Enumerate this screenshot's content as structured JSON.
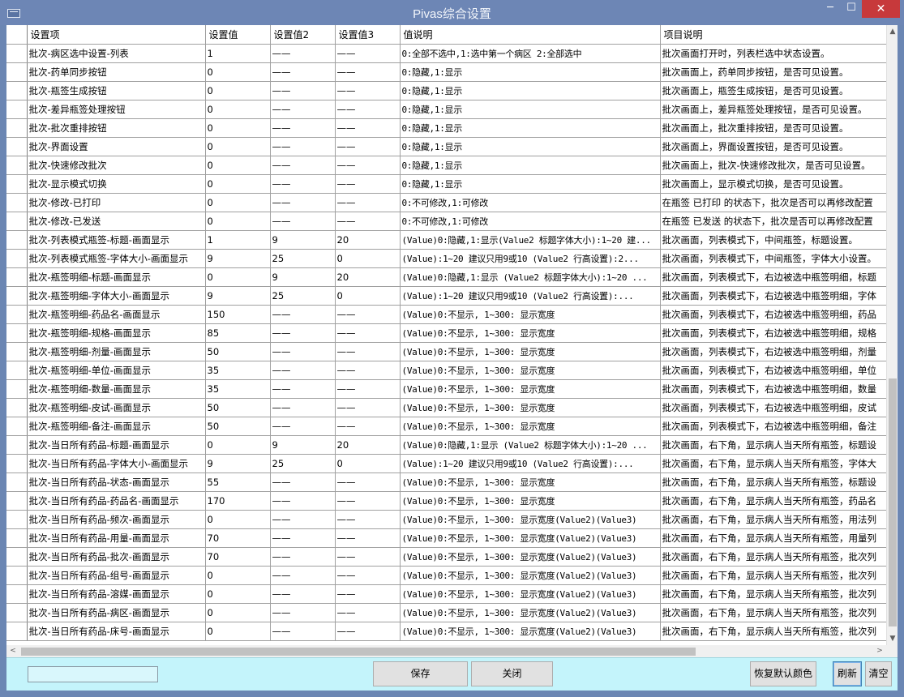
{
  "window": {
    "title": "Pivas综合设置",
    "minimize_glyph": "─",
    "maximize_glyph": "☐",
    "close_glyph": "✕"
  },
  "grid": {
    "columns": [
      "设置项",
      "设置值",
      "设置值2",
      "设置值3",
      "值说明",
      "项目说明"
    ],
    "rows": [
      [
        "批次-病区选中设置-列表",
        "1",
        "——",
        "——",
        "0:全部不选中,1:选中第一个病区 2:全部选中",
        "批次画面打开时，列表栏选中状态设置。"
      ],
      [
        "批次-药单同步按钮",
        "0",
        "——",
        "——",
        "0:隐藏,1:显示",
        "批次画面上，药单同步按钮，是否可见设置。"
      ],
      [
        "批次-瓶签生成按钮",
        "0",
        "——",
        "——",
        "0:隐藏,1:显示",
        "批次画面上，瓶签生成按钮，是否可见设置。"
      ],
      [
        "批次-差异瓶签处理按钮",
        "0",
        "——",
        "——",
        "0:隐藏,1:显示",
        "批次画面上，差异瓶签处理按钮，是否可见设置。"
      ],
      [
        "批次-批次重排按钮",
        "0",
        "——",
        "——",
        "0:隐藏,1:显示",
        "批次画面上，批次重排按钮，是否可见设置。"
      ],
      [
        "批次-界面设置",
        "0",
        "——",
        "——",
        "0:隐藏,1:显示",
        "批次画面上，界面设置按钮，是否可见设置。"
      ],
      [
        "批次-快速修改批次",
        "0",
        "——",
        "——",
        "0:隐藏,1:显示",
        "批次画面上，批次-快速修改批次，是否可见设置。"
      ],
      [
        "批次-显示模式切换",
        "0",
        "——",
        "——",
        "0:隐藏,1:显示",
        "批次画面上，显示模式切换，是否可见设置。"
      ],
      [
        "批次-修改-已打印",
        "0",
        "——",
        "——",
        "0:不可修改,1:可修改",
        "在瓶签 已打印 的状态下，批次是否可以再修改配置"
      ],
      [
        "批次-修改-已发送",
        "0",
        "——",
        "——",
        "0:不可修改,1:可修改",
        "在瓶签 已发送 的状态下，批次是否可以再修改配置"
      ],
      [
        "批次-列表模式瓶签-标题-画面显示",
        "1",
        "9",
        "20",
        "(Value)0:隐藏,1:显示(Value2 标题字体大小):1~20 建...",
        "批次画面，列表模式下，中间瓶签，标题设置。"
      ],
      [
        "批次-列表模式瓶签-字体大小-画面显示",
        "9",
        "25",
        "0",
        "(Value):1~20 建议只用9或10   (Value2 行高设置):2...",
        "批次画面，列表模式下，中间瓶签，字体大小设置。"
      ],
      [
        "批次-瓶签明细-标题-画面显示",
        "0",
        "9",
        "20",
        "(Value)0:隐藏,1:显示  (Value2 标题字体大小):1~20 ...",
        "批次画面，列表模式下，右边被选中瓶签明细，标题"
      ],
      [
        "批次-瓶签明细-字体大小-画面显示",
        "9",
        "25",
        "0",
        "(Value):1~20 建议只用9或10    (Value2 行高设置):...",
        "批次画面，列表模式下，右边被选中瓶签明细，字体"
      ],
      [
        "批次-瓶签明细-药品名-画面显示",
        "150",
        "——",
        "——",
        "(Value)0:不显示, 1~300: 显示宽度",
        "批次画面，列表模式下，右边被选中瓶签明细，药品"
      ],
      [
        "批次-瓶签明细-规格-画面显示",
        "85",
        "——",
        "——",
        "(Value)0:不显示, 1~300: 显示宽度",
        "批次画面，列表模式下，右边被选中瓶签明细，规格"
      ],
      [
        "批次-瓶签明细-剂量-画面显示",
        "50",
        "——",
        "——",
        "(Value)0:不显示, 1~300: 显示宽度",
        "批次画面，列表模式下，右边被选中瓶签明细，剂量"
      ],
      [
        "批次-瓶签明细-单位-画面显示",
        "35",
        "——",
        "——",
        "(Value)0:不显示, 1~300: 显示宽度",
        "批次画面，列表模式下，右边被选中瓶签明细，单位"
      ],
      [
        "批次-瓶签明细-数量-画面显示",
        "35",
        "——",
        "——",
        "(Value)0:不显示, 1~300: 显示宽度",
        "批次画面，列表模式下，右边被选中瓶签明细，数量"
      ],
      [
        "批次-瓶签明细-皮试-画面显示",
        "50",
        "——",
        "——",
        "(Value)0:不显示, 1~300: 显示宽度",
        "批次画面，列表模式下，右边被选中瓶签明细，皮试"
      ],
      [
        "批次-瓶签明细-备注-画面显示",
        "50",
        "——",
        "——",
        "(Value)0:不显示, 1~300: 显示宽度",
        "批次画面，列表模式下，右边被选中瓶签明细，备注"
      ],
      [
        "批次-当日所有药品-标题-画面显示",
        "0",
        "9",
        "20",
        "(Value)0:隐藏,1:显示  (Value2 标题字体大小):1~20 ...",
        "批次画面，右下角，显示病人当天所有瓶签，标题设"
      ],
      [
        "批次-当日所有药品-字体大小-画面显示",
        "9",
        "25",
        "0",
        "(Value):1~20 建议只用9或10    (Value2 行高设置):...",
        "批次画面，右下角，显示病人当天所有瓶签，字体大"
      ],
      [
        "批次-当日所有药品-状态-画面显示",
        "55",
        "——",
        "——",
        "(Value)0:不显示, 1~300: 显示宽度",
        "批次画面，右下角，显示病人当天所有瓶签，标题设"
      ],
      [
        "批次-当日所有药品-药品名-画面显示",
        "170",
        "——",
        "——",
        "(Value)0:不显示, 1~300: 显示宽度",
        "批次画面，右下角，显示病人当天所有瓶签，药品名"
      ],
      [
        "批次-当日所有药品-频次-画面显示",
        "0",
        "——",
        "——",
        "(Value)0:不显示, 1~300: 显示宽度(Value2)(Value3)",
        "批次画面，右下角，显示病人当天所有瓶签，用法列"
      ],
      [
        "批次-当日所有药品-用量-画面显示",
        "70",
        "——",
        "——",
        "(Value)0:不显示, 1~300: 显示宽度(Value2)(Value3)",
        "批次画面，右下角，显示病人当天所有瓶签，用量列"
      ],
      [
        "批次-当日所有药品-批次-画面显示",
        "70",
        "——",
        "——",
        "(Value)0:不显示, 1~300: 显示宽度(Value2)(Value3)",
        "批次画面，右下角，显示病人当天所有瓶签，批次列"
      ],
      [
        "批次-当日所有药品-组号-画面显示",
        "0",
        "——",
        "——",
        "(Value)0:不显示, 1~300: 显示宽度(Value2)(Value3)",
        "批次画面，右下角，显示病人当天所有瓶签，批次列"
      ],
      [
        "批次-当日所有药品-溶媒-画面显示",
        "0",
        "——",
        "——",
        "(Value)0:不显示, 1~300: 显示宽度(Value2)(Value3)",
        "批次画面，右下角，显示病人当天所有瓶签，批次列"
      ],
      [
        "批次-当日所有药品-病区-画面显示",
        "0",
        "——",
        "——",
        "(Value)0:不显示, 1~300: 显示宽度(Value2)(Value3)",
        "批次画面，右下角，显示病人当天所有瓶签，批次列"
      ],
      [
        "批次-当日所有药品-床号-画面显示",
        "0",
        "——",
        "——",
        "(Value)0:不显示, 1~300: 显示宽度(Value2)(Value3)",
        "批次画面，右下角，显示病人当天所有瓶签，批次列"
      ]
    ]
  },
  "scrollbar": {
    "up_glyph": "▲",
    "down_glyph": "▼",
    "left_glyph": "<",
    "right_glyph": ">"
  },
  "buttons": {
    "save": "保存",
    "close": "关闭",
    "restore_default_color": "恢复默认颜色",
    "refresh": "刷新",
    "clear": "清空"
  },
  "status_input": {
    "value": ""
  },
  "colors": {
    "titlebar": "#6d86b5",
    "close_button": "#c7393b",
    "bottom_panel": "#c4f4fb",
    "grid_line": "#a0a0a0"
  }
}
